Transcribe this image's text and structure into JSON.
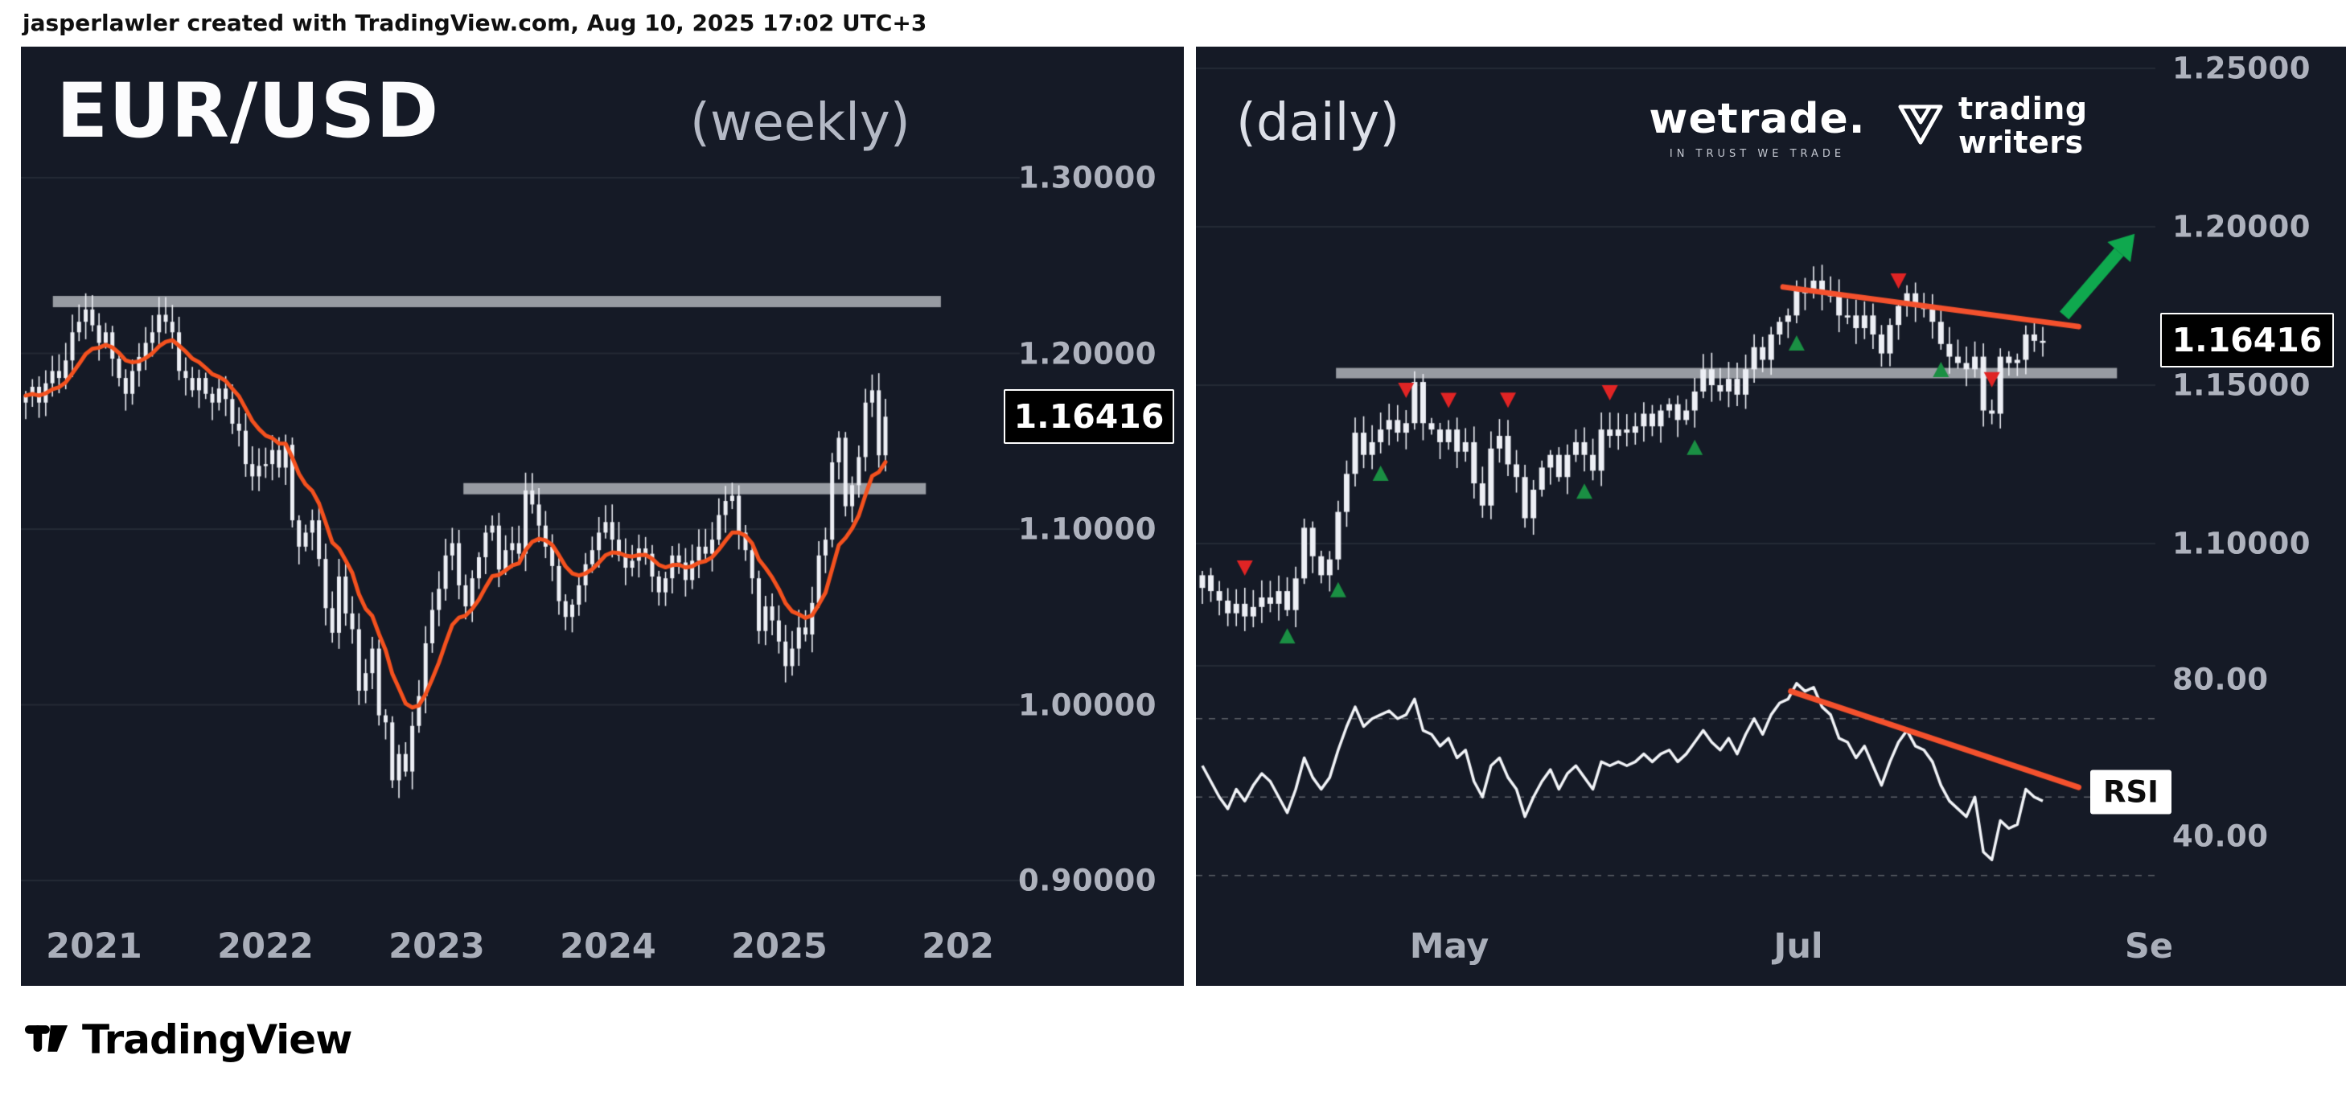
{
  "topbar": {
    "attribution": "jasperlawler created with TradingView.com, Aug 10, 2025 17:02 UTC+3"
  },
  "weekly_panel": {
    "symbol": "EUR/USD",
    "timeframe_label": "(weekly)",
    "price_axis": [
      "1.30000",
      "1.20000",
      "1.10000",
      "1.00000",
      "0.90000"
    ],
    "last_price_tag": "1.16416",
    "time_axis": [
      "2021",
      "2022",
      "2023",
      "2024",
      "2025",
      "202"
    ]
  },
  "daily_panel": {
    "timeframe_label": "(daily)",
    "wetrade_logo": {
      "name": "wetrade.",
      "tagline": "IN TRUST WE TRADE"
    },
    "tradingwriters_logo": {
      "line1": "trading",
      "line2": "writers"
    },
    "price_axis": [
      "1.25000",
      "1.20000",
      "1.15000",
      "1.10000"
    ],
    "last_price_tag": "1.16416",
    "rsi_axis": [
      "80.00",
      "40.00"
    ],
    "rsi_label": "RSI",
    "time_axis": [
      "May",
      "Jul",
      "Se"
    ]
  },
  "footer": {
    "brand": "TradingView"
  },
  "colors": {
    "panel_bg": "#151a26",
    "candle": "#edeff5",
    "ma_line": "#f4511e",
    "trend_line": "#f4512d",
    "zone": "#a3a6ad",
    "signal_up": "#1a8f43",
    "signal_down": "#e02424",
    "big_arrow": "#0fa84e",
    "rsi_line": "#f2f4f8",
    "grid": "rgba(255,255,255,0.07)",
    "rsi_band": "rgba(255,255,255,0.30)"
  },
  "chart_data": [
    {
      "type": "candlestick",
      "panel": "weekly",
      "title": "EUR/USD weekly",
      "x_start_year": 2020.6,
      "x_end_year": 2025.62,
      "ylim": [
        0.88,
        1.32
      ],
      "levels": [
        1.3,
        1.2,
        1.1,
        1.0,
        0.9
      ],
      "ma": {
        "kind": "ema",
        "period": 10
      },
      "zones": [
        {
          "price": 1.2295,
          "x1frac": 0.032,
          "x2frac": 0.921
        },
        {
          "price": 1.123,
          "x1frac": 0.443,
          "x2frac": 0.906
        }
      ],
      "last_price": 1.16416,
      "closes": [
        1.176,
        1.181,
        1.172,
        1.183,
        1.19,
        1.186,
        1.196,
        1.212,
        1.218,
        1.225,
        1.216,
        1.206,
        1.212,
        1.197,
        1.186,
        1.177,
        1.19,
        1.198,
        1.206,
        1.212,
        1.222,
        1.218,
        1.212,
        1.19,
        1.186,
        1.179,
        1.186,
        1.177,
        1.172,
        1.18,
        1.174,
        1.16,
        1.156,
        1.137,
        1.13,
        1.136,
        1.137,
        1.145,
        1.135,
        1.148,
        1.105,
        1.09,
        1.098,
        1.105,
        1.083,
        1.055,
        1.041,
        1.073,
        1.052,
        1.043,
        1.008,
        1.018,
        1.032,
        0.994,
        0.99,
        0.957,
        0.972,
        0.962,
        0.988,
        1.005,
        1.035,
        1.054,
        1.066,
        1.085,
        1.092,
        1.068,
        1.056,
        1.072,
        1.084,
        1.098,
        1.102,
        1.077,
        1.088,
        1.092,
        1.086,
        1.122,
        1.114,
        1.102,
        1.09,
        1.079,
        1.059,
        1.05,
        1.057,
        1.068,
        1.08,
        1.088,
        1.098,
        1.104,
        1.094,
        1.085,
        1.078,
        1.082,
        1.089,
        1.086,
        1.073,
        1.064,
        1.072,
        1.085,
        1.081,
        1.071,
        1.082,
        1.09,
        1.086,
        1.094,
        1.108,
        1.116,
        1.119,
        1.098,
        1.088,
        1.072,
        1.042,
        1.056,
        1.048,
        1.036,
        1.022,
        1.032,
        1.044,
        1.04,
        1.058,
        1.085,
        1.094,
        1.138,
        1.152,
        1.113,
        1.125,
        1.141,
        1.172,
        1.179,
        1.142,
        1.164
      ]
    },
    {
      "type": "candlestick",
      "panel": "daily",
      "title": "EUR/USD daily",
      "ylim": [
        1.06,
        1.262
      ],
      "levels": [
        1.25,
        1.2,
        1.15,
        1.1
      ],
      "zone": {
        "price": 1.1538,
        "x1frac": 0.146,
        "x2frac": 0.96
      },
      "trendline": {
        "x1frac": 0.612,
        "price1": 1.181,
        "x2frac": 0.92,
        "price2": 1.1685
      },
      "big_arrow": {
        "x1frac": 0.905,
        "price1": 1.172,
        "x2frac": 0.962,
        "price2": 1.192
      },
      "signals_up": [
        10,
        16,
        21,
        45,
        58,
        70,
        87
      ],
      "signals_down": [
        5,
        24,
        29,
        36,
        48,
        82,
        93
      ],
      "last_price": 1.16416,
      "closes": [
        1.09,
        1.085,
        1.082,
        1.078,
        1.081,
        1.077,
        1.08,
        1.083,
        1.081,
        1.085,
        1.079,
        1.089,
        1.105,
        1.096,
        1.09,
        1.095,
        1.11,
        1.122,
        1.135,
        1.128,
        1.132,
        1.136,
        1.139,
        1.135,
        1.138,
        1.151,
        1.138,
        1.136,
        1.132,
        1.136,
        1.129,
        1.132,
        1.119,
        1.112,
        1.13,
        1.134,
        1.125,
        1.121,
        1.108,
        1.117,
        1.124,
        1.128,
        1.121,
        1.128,
        1.132,
        1.128,
        1.123,
        1.136,
        1.134,
        1.136,
        1.135,
        1.137,
        1.141,
        1.137,
        1.142,
        1.144,
        1.139,
        1.142,
        1.148,
        1.155,
        1.15,
        1.148,
        1.152,
        1.147,
        1.155,
        1.162,
        1.158,
        1.166,
        1.17,
        1.172,
        1.18,
        1.179,
        1.183,
        1.179,
        1.178,
        1.172,
        1.172,
        1.168,
        1.172,
        1.166,
        1.16,
        1.169,
        1.175,
        1.179,
        1.175,
        1.174,
        1.17,
        1.163,
        1.159,
        1.157,
        1.155,
        1.159,
        1.142,
        1.141,
        1.159,
        1.157,
        1.158,
        1.166,
        1.164,
        1.164
      ]
    },
    {
      "type": "line",
      "panel": "rsi",
      "name": "RSI",
      "range": [
        0,
        100
      ],
      "bands": [
        70,
        50,
        30
      ],
      "trendline": {
        "x1frac": 0.62,
        "v1": 77,
        "x2frac": 0.92,
        "v2": 52.5
      },
      "values": [
        58,
        54,
        50,
        47,
        52,
        49,
        53,
        56,
        54,
        50,
        46,
        52,
        60,
        55,
        52,
        55,
        62,
        68,
        73,
        68,
        70,
        71,
        72,
        70,
        71,
        75,
        67,
        66,
        63,
        65,
        60,
        62,
        54,
        50,
        58,
        60,
        55,
        52,
        45,
        50,
        54,
        57,
        52,
        56,
        58,
        55,
        52,
        59,
        58,
        59,
        58,
        59,
        61,
        59,
        61,
        62,
        59,
        61,
        64,
        67,
        64,
        62,
        65,
        61,
        66,
        70,
        66,
        71,
        74,
        75,
        79,
        77,
        78,
        73,
        71,
        65,
        64,
        60,
        63,
        58,
        53,
        59,
        64,
        67,
        63,
        62,
        59,
        53,
        49,
        47,
        45,
        50,
        36,
        34,
        44,
        42,
        43,
        52,
        50,
        49
      ]
    }
  ]
}
